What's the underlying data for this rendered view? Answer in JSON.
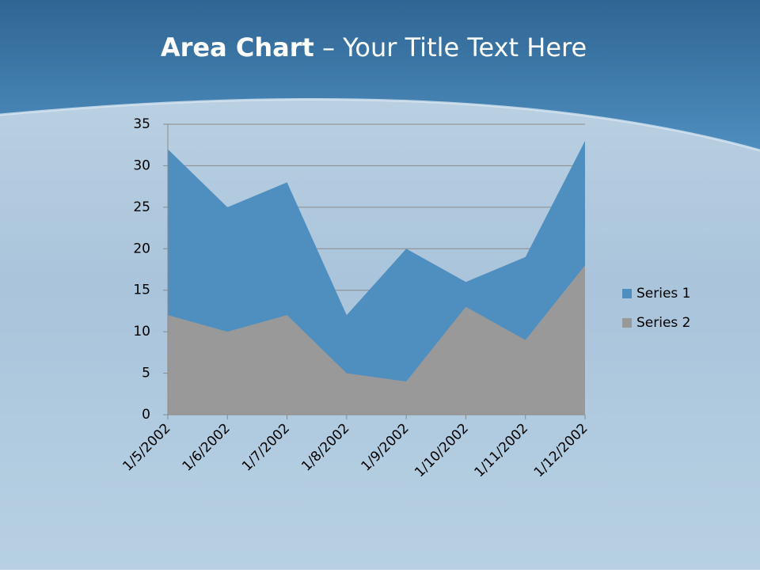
{
  "title_bold": "Area Chart",
  "title_rest": "– Your Title Text Here",
  "chart_data": {
    "type": "area",
    "categories": [
      "1/5/2002",
      "1/6/2002",
      "1/7/2002",
      "1/8/2002",
      "1/9/2002",
      "1/10/2002",
      "1/11/2002",
      "1/12/2002"
    ],
    "series": [
      {
        "name": "Series 1",
        "color": "#4f8fc0",
        "values": [
          32,
          25,
          28,
          12,
          20,
          16,
          19,
          33
        ]
      },
      {
        "name": "Series 2",
        "color": "#999999",
        "values": [
          12,
          10,
          12,
          5,
          4,
          13,
          9,
          18
        ]
      }
    ],
    "ylim": [
      0,
      35
    ],
    "yticks": [
      0,
      5,
      10,
      15,
      20,
      25,
      30,
      35
    ],
    "grid": true,
    "legend": "right"
  }
}
